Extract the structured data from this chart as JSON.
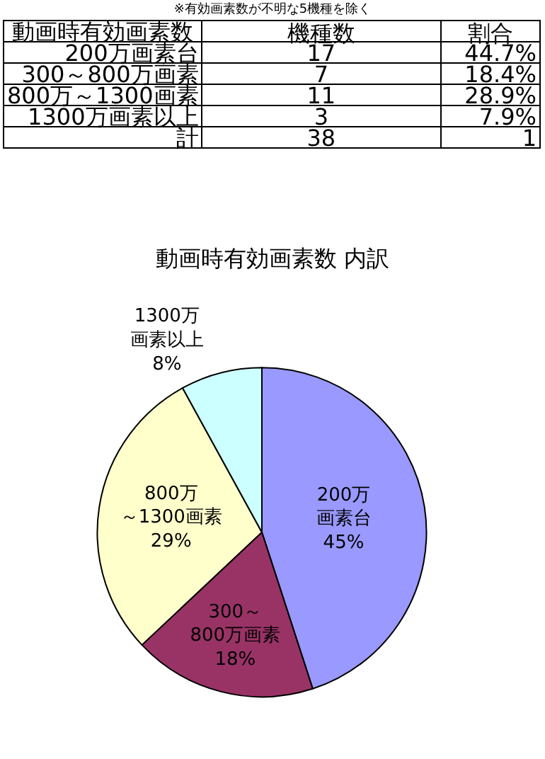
{
  "chart_data": [
    {
      "type": "other",
      "title": "※有効画素数が不明な5機種を除く",
      "annotations": [
        "動画時有効画素数"
      ],
      "data_labels": true,
      "categories": [
        "200万画素台",
        "300～800万画素",
        "800万～1300画素",
        "1300万画素以上",
        "計"
      ],
      "series": [
        {
          "name": "機種数",
          "values": [
            17,
            7,
            11,
            3,
            38
          ]
        },
        {
          "name": "割合",
          "values": [
            44.7,
            18.4,
            28.9,
            7.9,
            1
          ],
          "value_labels": [
            "44.7%",
            "18.4%",
            "28.9%",
            "7.9%",
            "1"
          ]
        }
      ]
    },
    {
      "type": "pie",
      "title": "動画時有効画素数 内訳",
      "categories": [
        "200万画素台",
        "300～800万画素",
        "800万～1300画素",
        "1300万画素以上"
      ],
      "values": [
        45,
        18,
        29,
        8
      ],
      "value_labels": [
        "45%",
        "18%",
        "29%",
        "8%"
      ],
      "colors": [
        "#9999ff",
        "#993366",
        "#ffffcc",
        "#ccffff"
      ],
      "legend": false
    }
  ]
}
